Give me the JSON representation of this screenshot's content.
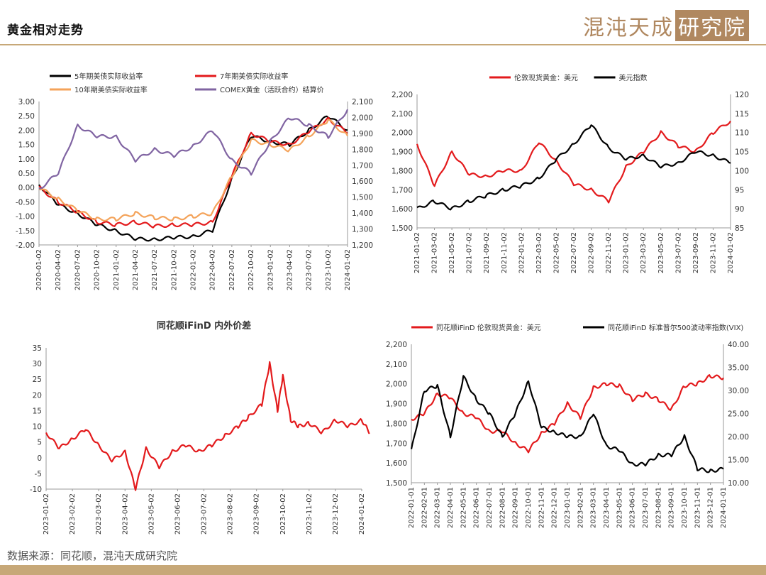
{
  "header": {
    "title": "黄金相对走势",
    "brand_text": "混沌天成",
    "brand_box_text": "研究院"
  },
  "footer": {
    "source": "数据来源：同花顺，混沌天成研究院"
  },
  "colors": {
    "accent": "#c7a878",
    "red": "#e31a1c",
    "black": "#000000",
    "orange": "#f4a35a",
    "purple": "#8064a2"
  },
  "chart_data": [
    {
      "id": "c1",
      "type": "line",
      "title": "",
      "legend": [
        "5年期美债实际收益率",
        "7年期美债实际收益率",
        "10年期美债实际收益率",
        "COMEX黄金（活跃合约）结算价"
      ],
      "x_ticks": [
        "2020-01-02",
        "2020-04-02",
        "2020-07-02",
        "2020-10-02",
        "2021-01-02",
        "2021-04-02",
        "2021-07-02",
        "2021-10-02",
        "2022-01-02",
        "2022-04-02",
        "2022-07-02",
        "2022-10-02",
        "2023-01-02",
        "2023-04-02",
        "2023-07-02",
        "2023-10-02",
        "2024-01-02"
      ],
      "y_left": {
        "min": -2.0,
        "max": 3.0,
        "ticks": [
          "3.00",
          "2.50",
          "2.00",
          "1.50",
          "1.00",
          "0.50",
          "0.00",
          "-0.50",
          "-1.00",
          "-1.50",
          "-2.00"
        ]
      },
      "y_right": {
        "min": 1200,
        "max": 2100,
        "ticks": [
          "2,100",
          "2,000",
          "1,900",
          "1,800",
          "1,700",
          "1,600",
          "1,500",
          "1,400",
          "1,300",
          "1,200"
        ]
      },
      "series": [
        {
          "name": "5年期美债实际收益率",
          "color": "#000000",
          "axis": "left",
          "values": [
            [
              0,
              0.1
            ],
            [
              1,
              -0.6
            ],
            [
              2,
              -0.9
            ],
            [
              3,
              -1.3
            ],
            [
              4,
              -1.5
            ],
            [
              5,
              -1.8
            ],
            [
              6,
              -1.8
            ],
            [
              7,
              -1.75
            ],
            [
              8,
              -1.7
            ],
            [
              9,
              -1.5
            ],
            [
              10,
              0.3
            ],
            [
              11,
              1.8
            ],
            [
              12,
              1.6
            ],
            [
              13,
              1.5
            ],
            [
              14,
              2.0
            ],
            [
              15,
              2.5
            ],
            [
              16,
              2.0
            ]
          ]
        },
        {
          "name": "7年期美债实际收益率",
          "color": "#e31a1c",
          "axis": "left",
          "values": [
            [
              0,
              0.0
            ],
            [
              1,
              -0.5
            ],
            [
              2,
              -0.85
            ],
            [
              3,
              -1.2
            ],
            [
              4,
              -1.3
            ],
            [
              5,
              -1.2
            ],
            [
              6,
              -1.35
            ],
            [
              7,
              -1.3
            ],
            [
              8,
              -1.3
            ],
            [
              9,
              -1.2
            ],
            [
              10,
              0.4
            ],
            [
              11,
              1.9
            ],
            [
              12,
              1.6
            ],
            [
              13,
              1.5
            ],
            [
              14,
              1.95
            ],
            [
              15,
              2.4
            ],
            [
              16,
              1.9
            ]
          ]
        },
        {
          "name": "10年期美债实际收益率",
          "color": "#f4a35a",
          "axis": "left",
          "values": [
            [
              0,
              0.0
            ],
            [
              1,
              -0.4
            ],
            [
              2,
              -0.8
            ],
            [
              3,
              -1.1
            ],
            [
              4,
              -1.1
            ],
            [
              5,
              -0.9
            ],
            [
              6,
              -1.05
            ],
            [
              7,
              -1.1
            ],
            [
              8,
              -1.0
            ],
            [
              9,
              -0.9
            ],
            [
              10,
              0.4
            ],
            [
              11,
              1.65
            ],
            [
              12,
              1.5
            ],
            [
              13,
              1.3
            ],
            [
              14,
              1.8
            ],
            [
              15,
              2.35
            ],
            [
              16,
              1.8
            ]
          ]
        },
        {
          "name": "COMEX黄金（活跃合约）结算价",
          "color": "#8064a2",
          "axis": "right",
          "values": [
            [
              0,
              1550
            ],
            [
              1,
              1650
            ],
            [
              2,
              1950
            ],
            [
              3,
              1880
            ],
            [
              4,
              1880
            ],
            [
              5,
              1730
            ],
            [
              6,
              1800
            ],
            [
              7,
              1760
            ],
            [
              8,
              1820
            ],
            [
              9,
              1920
            ],
            [
              10,
              1730
            ],
            [
              11,
              1650
            ],
            [
              12,
              1850
            ],
            [
              13,
              2000
            ],
            [
              14,
              1950
            ],
            [
              15,
              1880
            ],
            [
              16,
              2050
            ]
          ]
        }
      ]
    },
    {
      "id": "c2",
      "type": "line",
      "title": "",
      "legend": [
        "伦敦现货黄金：美元",
        "美元指数"
      ],
      "x_ticks": [
        "2021-01-02",
        "2021-03-02",
        "2021-05-02",
        "2021-07-02",
        "2021-09-02",
        "2021-11-02",
        "2022-01-02",
        "2022-03-02",
        "2022-05-02",
        "2022-07-02",
        "2022-09-02",
        "2022-11-02",
        "2023-01-02",
        "2023-03-02",
        "2023-05-02",
        "2023-07-02",
        "2023-09-02",
        "2023-11-02",
        "2024-01-02"
      ],
      "y_left": {
        "min": 1500,
        "max": 2200,
        "ticks": [
          "2,200",
          "2,100",
          "2,000",
          "1,900",
          "1,800",
          "1,700",
          "1,600",
          "1,500"
        ]
      },
      "y_right": {
        "min": 85,
        "max": 120,
        "ticks": [
          "120",
          "115",
          "110",
          "105",
          "100",
          "95",
          "90",
          "85"
        ]
      },
      "series": [
        {
          "name": "伦敦现货黄金：美元",
          "color": "#e31a1c",
          "axis": "left",
          "values": [
            [
              0,
              1940
            ],
            [
              1,
              1720
            ],
            [
              2,
              1900
            ],
            [
              3,
              1780
            ],
            [
              4,
              1770
            ],
            [
              5,
              1800
            ],
            [
              6,
              1800
            ],
            [
              7,
              1950
            ],
            [
              8,
              1850
            ],
            [
              9,
              1730
            ],
            [
              10,
              1700
            ],
            [
              11,
              1640
            ],
            [
              12,
              1820
            ],
            [
              13,
              1900
            ],
            [
              14,
              2000
            ],
            [
              15,
              1930
            ],
            [
              16,
              1900
            ],
            [
              17,
              2000
            ],
            [
              18,
              2060
            ]
          ]
        },
        {
          "name": "美元指数",
          "color": "#000000",
          "axis": "right",
          "values": [
            [
              0,
              90
            ],
            [
              1,
              92
            ],
            [
              2,
              90
            ],
            [
              3,
              92
            ],
            [
              4,
              93.5
            ],
            [
              5,
              95
            ],
            [
              6,
              96
            ],
            [
              7,
              98
            ],
            [
              8,
              103
            ],
            [
              9,
              107
            ],
            [
              10,
              112
            ],
            [
              11,
              106
            ],
            [
              12,
              103
            ],
            [
              13,
              104
            ],
            [
              14,
              101
            ],
            [
              15,
              102
            ],
            [
              16,
              105
            ],
            [
              17,
              104
            ],
            [
              18,
              102
            ]
          ]
        }
      ]
    },
    {
      "id": "c3",
      "type": "line",
      "title": "同花顺iFinD 内外价差",
      "legend": [],
      "x_ticks": [
        "2023-01-02",
        "2023-02-02",
        "2023-03-02",
        "2023-04-02",
        "2023-05-02",
        "2023-06-02",
        "2023-07-02",
        "2023-08-02",
        "2023-09-02",
        "2023-10-02",
        "2023-11-02",
        "2023-12-02",
        "2024-01-02"
      ],
      "y_left": {
        "min": -10,
        "max": 35,
        "ticks": [
          "35",
          "30",
          "25",
          "20",
          "15",
          "10",
          "5",
          "0",
          "-5",
          "-10"
        ]
      },
      "series": [
        {
          "name": "",
          "color": "#e31a1c",
          "axis": "left",
          "values": [
            [
              0,
              8
            ],
            [
              0.5,
              3
            ],
            [
              1,
              6
            ],
            [
              1.5,
              9
            ],
            [
              2,
              4
            ],
            [
              2.5,
              -1
            ],
            [
              3,
              2
            ],
            [
              3.4,
              -10
            ],
            [
              3.8,
              3
            ],
            [
              4.3,
              -3
            ],
            [
              4.8,
              2
            ],
            [
              5.3,
              4
            ],
            [
              5.8,
              2
            ],
            [
              6.3,
              4
            ],
            [
              6.8,
              7
            ],
            [
              7.3,
              10
            ],
            [
              7.7,
              13
            ],
            [
              8.2,
              17
            ],
            [
              8.5,
              30
            ],
            [
              8.8,
              15
            ],
            [
              9.0,
              26
            ],
            [
              9.3,
              12
            ],
            [
              9.6,
              10
            ],
            [
              10.0,
              11
            ],
            [
              10.5,
              8
            ],
            [
              11.0,
              12
            ],
            [
              11.5,
              10
            ],
            [
              12.0,
              12
            ],
            [
              12.3,
              8
            ]
          ]
        }
      ]
    },
    {
      "id": "c4",
      "type": "line",
      "title": "",
      "legend": [
        "同花顺iFinD 伦敦现货黄金：美元",
        "同花顺iFinD 标准普尔500波动率指数(VIX)"
      ],
      "x_ticks": [
        "2022-01-01",
        "2022-02-01",
        "2022-03-01",
        "2022-04-01",
        "2022-05-01",
        "2022-06-01",
        "2022-07-01",
        "2022-08-01",
        "2022-09-01",
        "2022-10-01",
        "2022-11-01",
        "2022-12-01",
        "2023-01-01",
        "2023-02-01",
        "2023-03-01",
        "2023-04-01",
        "2023-05-01",
        "2023-06-01",
        "2023-07-01",
        "2023-08-01",
        "2023-09-01",
        "2023-10-01",
        "2023-11-01",
        "2023-12-01",
        "2024-01-01"
      ],
      "y_left": {
        "min": 1500,
        "max": 2200,
        "ticks": [
          "2,200",
          "2,100",
          "2,000",
          "1,900",
          "1,800",
          "1,700",
          "1,600",
          "1,500"
        ]
      },
      "y_right": {
        "min": 10,
        "max": 40,
        "ticks": [
          "40.00",
          "35.00",
          "30.00",
          "25.00",
          "20.00",
          "15.00",
          "10.00"
        ]
      },
      "series": [
        {
          "name": "同花顺iFinD 伦敦现货黄金：美元",
          "color": "#e31a1c",
          "axis": "left",
          "values": [
            [
              0,
              1820
            ],
            [
              1,
              1850
            ],
            [
              2,
              1950
            ],
            [
              3,
              1930
            ],
            [
              4,
              1850
            ],
            [
              5,
              1830
            ],
            [
              6,
              1760
            ],
            [
              7,
              1760
            ],
            [
              8,
              1700
            ],
            [
              9,
              1660
            ],
            [
              10,
              1750
            ],
            [
              11,
              1800
            ],
            [
              12,
              1900
            ],
            [
              13,
              1830
            ],
            [
              14,
              1980
            ],
            [
              15,
              2000
            ],
            [
              16,
              1990
            ],
            [
              17,
              1920
            ],
            [
              18,
              1950
            ],
            [
              19,
              1920
            ],
            [
              20,
              1870
            ],
            [
              21,
              1990
            ],
            [
              22,
              2000
            ],
            [
              23,
              2040
            ],
            [
              24,
              2030
            ]
          ]
        },
        {
          "name": "同花顺iFinD 标准普尔500波动率指数(VIX)",
          "color": "#000000",
          "axis": "right",
          "values": [
            [
              0,
              17
            ],
            [
              1,
              30
            ],
            [
              2,
              31
            ],
            [
              3,
              20
            ],
            [
              4,
              33
            ],
            [
              5,
              28
            ],
            [
              6,
              25
            ],
            [
              7,
              20
            ],
            [
              8,
              25
            ],
            [
              9,
              32
            ],
            [
              10,
              22
            ],
            [
              11,
              21
            ],
            [
              12,
              20
            ],
            [
              13,
              20
            ],
            [
              14,
              25
            ],
            [
              15,
              18
            ],
            [
              16,
              17
            ],
            [
              17,
              14
            ],
            [
              18,
              14
            ],
            [
              19,
              16
            ],
            [
              20,
              16
            ],
            [
              21,
              20
            ],
            [
              22,
              13
            ],
            [
              23,
              12.5
            ],
            [
              24,
              13
            ]
          ]
        }
      ]
    }
  ]
}
